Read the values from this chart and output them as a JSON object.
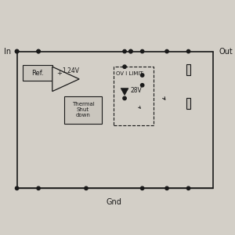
{
  "bg_color": "#d3cfc7",
  "line_color": "#1a1a1a",
  "fig_bg": "#d3cfc7",
  "in_label": "In",
  "out_label": "Out",
  "gnd_label": "Gnd",
  "ref_label": "Ref.",
  "voltage_label": "1.24V",
  "ov_limit_label": "OV I LIMIT",
  "zener_label": "28V",
  "thermal_label": "Thermal\nShut\ndown",
  "line_width": 0.9
}
